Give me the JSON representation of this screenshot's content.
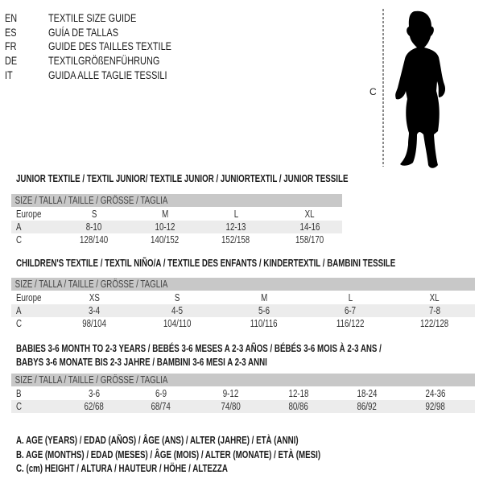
{
  "languages": [
    {
      "code": "EN",
      "label": "TEXTILE SIZE GUIDE"
    },
    {
      "code": "ES",
      "label": "GUÍA DE TALLAS"
    },
    {
      "code": "FR",
      "label": "GUIDE DES TAILLES TEXTILE"
    },
    {
      "code": "DE",
      "label": "TEXTILGRÖßENFÜHRUNG"
    },
    {
      "code": "IT",
      "label": "GUIDA ALLE TAGLIE TESSILI"
    }
  ],
  "figure": {
    "measure_label": "C",
    "icon": "child-silhouette"
  },
  "size_header": "SIZE / TALLA / TAILLE / GRÖSSE / TAGLIA",
  "tables": [
    {
      "title": "JUNIOR TEXTILE / TEXTIL JUNIOR/ TEXTILE JUNIOR / JUNIORTEXTIL / JUNIOR TESSILE",
      "rows": [
        {
          "label": "Europe",
          "values": [
            "S",
            "M",
            "L",
            "XL"
          ]
        },
        {
          "label": "A",
          "values": [
            "8-10",
            "10-12",
            "12-13",
            "14-16"
          ]
        },
        {
          "label": "C",
          "values": [
            "128/140",
            "140/152",
            "152/158",
            "158/170"
          ]
        }
      ]
    },
    {
      "title": "CHILDREN'S TEXTILE / TEXTIL NIÑO/A / TEXTILE DES ENFANTS / KINDERTEXTIL / BAMBINI TESSILE",
      "rows": [
        {
          "label": "Europe",
          "values": [
            "XS",
            "S",
            "M",
            "L",
            "XL"
          ]
        },
        {
          "label": "A",
          "values": [
            "3-4",
            "4-5",
            "5-6",
            "6-7",
            "7-8"
          ]
        },
        {
          "label": "C",
          "values": [
            "98/104",
            "104/110",
            "110/116",
            "116/122",
            "122/128"
          ]
        }
      ]
    },
    {
      "title": "BABIES 3-6 MONTH TO 2-3 YEARS / BEBÉS 3-6 MESES A 2-3 AÑOS / BÉBÉS 3-6 MOIS À 2-3 ANS /",
      "title2": "BABYS 3-6 MONATE BIS 2-3 JAHRE / BAMBINI 3-6 MESI A 2-3 ANNI",
      "rows": [
        {
          "label": "B",
          "values": [
            "3-6",
            "6-9",
            "9-12",
            "12-18",
            "18-24",
            "24-36"
          ]
        },
        {
          "label": "C",
          "values": [
            "62/68",
            "68/74",
            "74/80",
            "80/86",
            "86/92",
            "92/98"
          ]
        }
      ]
    }
  ],
  "legend": [
    "A. AGE (YEARS) / EDAD (AÑOS) / ÂGE (ANS) / ALTER (JAHRE) / ETÀ (ANNI)",
    "B. AGE (MONTHS) / EDAD (MESES) / ÂGE (MOIS) / ALTER (MONATE) / ETÀ (MESI)",
    "C. (cm) HEIGHT / ALTURA / HAUTEUR / HÖHE / ALTEZZA"
  ],
  "colors": {
    "header_bg": "#c8c8c8",
    "alt_row_bg": "#ececec",
    "text": "#1a1a1a"
  }
}
